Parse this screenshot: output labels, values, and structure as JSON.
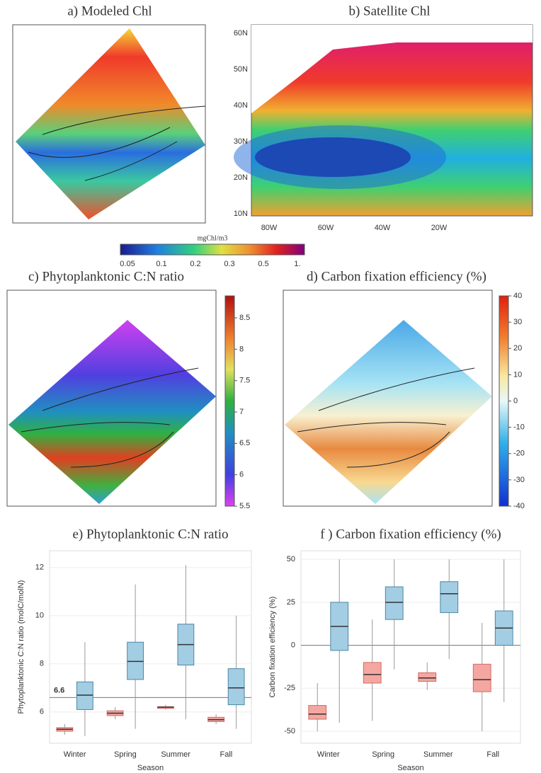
{
  "maps": [
    {
      "title": "a) Modeled Chl"
    },
    {
      "title": "b) Satellite Chl",
      "lat_labels": [
        "60N",
        "50N",
        "40N",
        "30N",
        "20N",
        "10N"
      ],
      "lon_labels": [
        "80W",
        "60W",
        "40W",
        "20W"
      ]
    },
    {
      "title": "c) Phytoplanktonic C:N ratio",
      "colorbar": {
        "lim": [
          5.5,
          8.85
        ],
        "ticks": [
          5.5,
          6,
          6.5,
          7,
          7.5,
          8,
          8.5
        ]
      }
    },
    {
      "title": "d) Carbon fixation efficiency (%)",
      "colorbar": {
        "lim": [
          -40,
          40
        ],
        "ticks": [
          -40,
          -30,
          -20,
          -10,
          0,
          10,
          20,
          30,
          40
        ]
      }
    }
  ],
  "chl_colorbar": {
    "label": "mgChl/m3",
    "ticks": [
      "0.05",
      "0.1",
      "0.2",
      "0.3",
      "0.5",
      "1."
    ]
  },
  "chart_data": [
    {
      "type": "box",
      "title": "e) Phytoplanktonic C:N ratio",
      "x_label": "Season",
      "y_label": "Phytoplanktonic C:N ratio (molC/molN)",
      "categories": [
        "Winter",
        "Spring",
        "Summer",
        "Fall"
      ],
      "ylim": [
        4.7,
        12.7
      ],
      "yticks": [
        6,
        8,
        10,
        12
      ],
      "reference_line": 6.6,
      "reference_label": "6.6",
      "series": [
        {
          "color": "#f4a7a1",
          "boxes": [
            {
              "min": 5.05,
              "q1": 5.2,
              "median": 5.28,
              "q3": 5.35,
              "max": 5.5
            },
            {
              "min": 5.7,
              "q1": 5.85,
              "median": 5.95,
              "q3": 6.05,
              "max": 6.2
            },
            {
              "min": 6.1,
              "q1": 6.15,
              "median": 6.2,
              "q3": 6.22,
              "max": 6.3
            },
            {
              "min": 5.5,
              "q1": 5.6,
              "median": 5.68,
              "q3": 5.78,
              "max": 5.9
            }
          ]
        },
        {
          "color": "#a3cde3",
          "boxes": [
            {
              "min": 5.0,
              "q1": 6.1,
              "median": 6.7,
              "q3": 7.25,
              "max": 8.9
            },
            {
              "min": 5.3,
              "q1": 7.35,
              "median": 8.1,
              "q3": 8.9,
              "max": 11.3
            },
            {
              "min": 5.7,
              "q1": 7.95,
              "median": 8.8,
              "q3": 9.65,
              "max": 12.1
            },
            {
              "min": 5.3,
              "q1": 6.3,
              "median": 7.0,
              "q3": 7.8,
              "max": 10.0
            }
          ]
        }
      ]
    },
    {
      "type": "box",
      "title": "f ) Carbon fixation efficiency (%)",
      "x_label": "Season",
      "y_label": "Carbon fixation efficiency (%)",
      "categories": [
        "Winter",
        "Spring",
        "Summer",
        "Fall"
      ],
      "ylim": [
        -57,
        55
      ],
      "yticks": [
        -50,
        -25,
        0,
        25,
        50
      ],
      "reference_line": 0,
      "series": [
        {
          "color": "#f4a7a1",
          "boxes": [
            {
              "min": -50,
              "q1": -43,
              "median": -40,
              "q3": -35,
              "max": -22
            },
            {
              "min": -44,
              "q1": -22,
              "median": -17,
              "q3": -10,
              "max": 15
            },
            {
              "min": -26,
              "q1": -21,
              "median": -19,
              "q3": -16,
              "max": -10
            },
            {
              "min": -50,
              "q1": -27,
              "median": -20,
              "q3": -11,
              "max": 13
            }
          ]
        },
        {
          "color": "#a3cde3",
          "boxes": [
            {
              "min": -45,
              "q1": -3,
              "median": 11,
              "q3": 25,
              "max": 50
            },
            {
              "min": -14,
              "q1": 15,
              "median": 25,
              "q3": 34,
              "max": 50
            },
            {
              "min": -8,
              "q1": 19,
              "median": 30,
              "q3": 37,
              "max": 50
            },
            {
              "min": -33,
              "q1": 0,
              "median": 10,
              "q3": 20,
              "max": 50
            }
          ]
        }
      ]
    }
  ]
}
